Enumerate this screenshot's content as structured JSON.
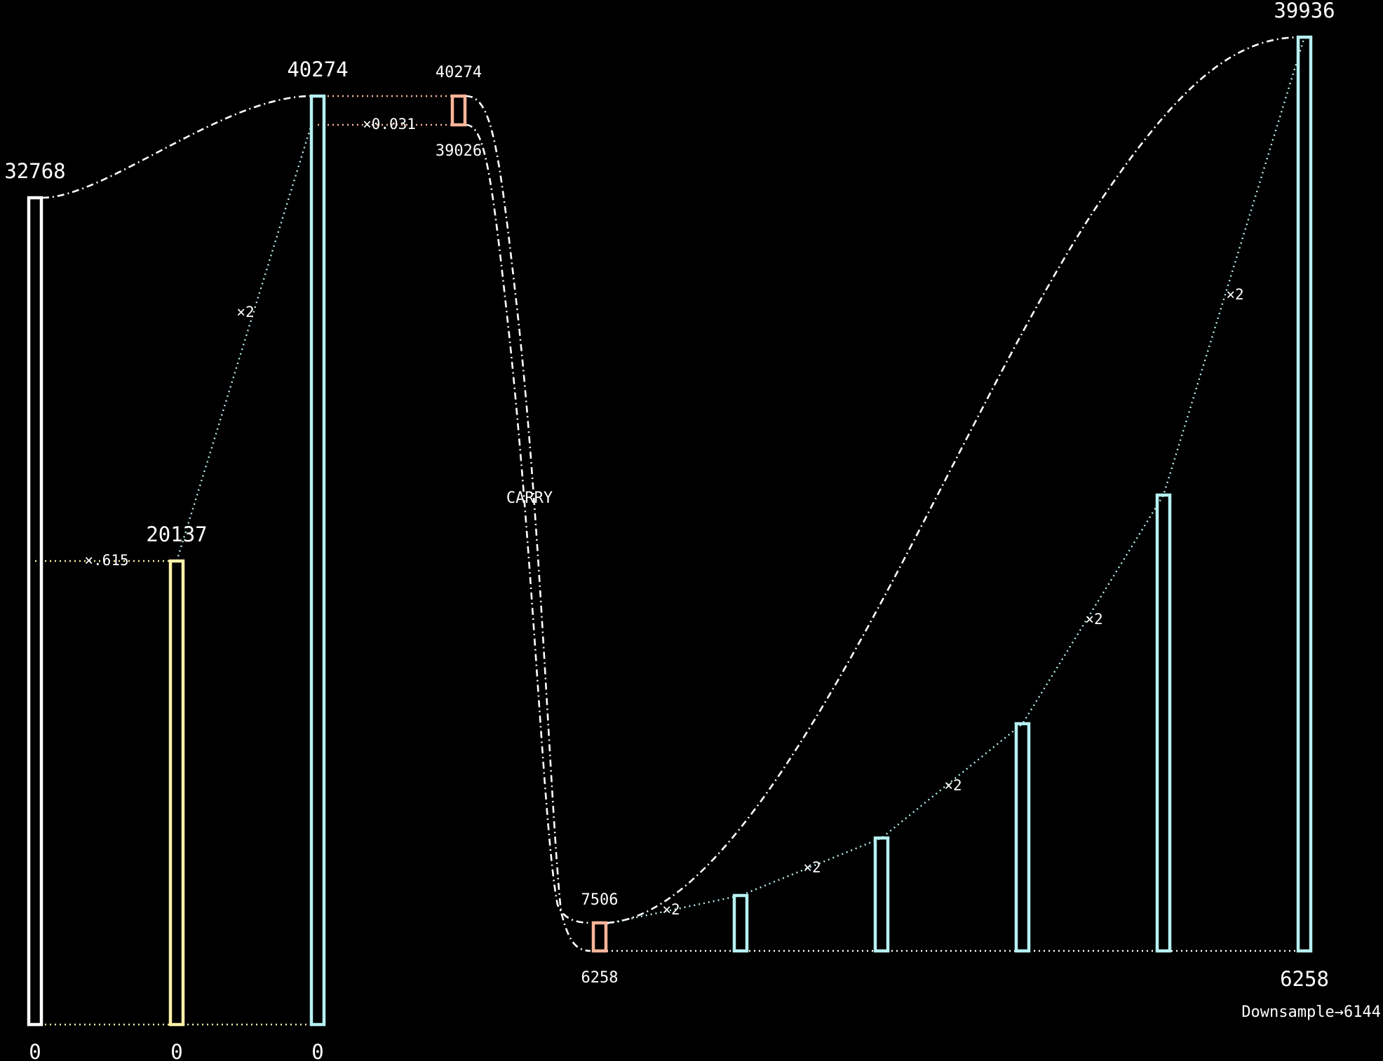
{
  "colors": {
    "background": "#000000",
    "white": "#ffffff",
    "cyan": "#b6f0f2",
    "yellow": "#fff2a8",
    "salmon": "#ffb59a"
  },
  "bars": {
    "b1": {
      "top": "32768",
      "bottom": "0"
    },
    "b2": {
      "top": "20137",
      "bottom": "0"
    },
    "b3": {
      "top": "40274",
      "bottom": "0"
    },
    "carry_top": {
      "top": "40274",
      "bottom": "39026"
    },
    "carry_bottom": {
      "top": "7506",
      "bottom": "6258"
    },
    "final": {
      "top": "39936",
      "bottom": "6258",
      "note": "Downsample→6144"
    }
  },
  "ops": {
    "scale": "×.615",
    "double": "×2",
    "fraction": "×0.031",
    "carry": "CARRY"
  }
}
